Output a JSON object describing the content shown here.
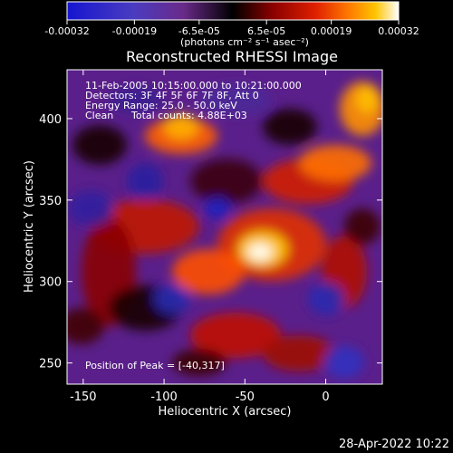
{
  "chart_data": {
    "type": "heatmap",
    "title": "Reconstructed RHESSI Image",
    "xlabel": "Heliocentric X (arcsec)",
    "ylabel": "Heliocentric Y (arcsec)",
    "xlim": [
      -160,
      35
    ],
    "ylim": [
      237,
      430
    ],
    "x_ticks": [
      -150,
      -100,
      -50,
      0
    ],
    "y_ticks": [
      250,
      300,
      350,
      400
    ],
    "colorbar": {
      "range": [
        -0.00032,
        0.00032
      ],
      "tick_labels": [
        "-0.00032",
        "-0.00019",
        "-6.5e-05",
        "6.5e-05",
        "0.00019",
        "0.00032"
      ],
      "unit_label": "(photons cm⁻² s⁻¹ asec⁻²)",
      "colors": [
        "#1515d0",
        "#5b3cb0",
        "#6a2a8a",
        "#000000",
        "#7a0000",
        "#d11a00",
        "#ff6a00",
        "#ffb000",
        "#ffffff"
      ]
    },
    "annotations": {
      "time_range": "11-Feb-2005 10:15:00.000 to 10:21:00.000",
      "detectors": "Detectors: 3F 4F 5F 6F 7F 8F, Att 0",
      "energy": "Energy Range: 25.0 - 50.0 keV",
      "method": "Clean",
      "counts": "Total counts: 4.88E+03",
      "peak": "Position of Peak = [-40,317]"
    },
    "peak": {
      "x": -40,
      "y": 317
    }
  },
  "footer": {
    "timestamp": "28-Apr-2022 10:22"
  }
}
